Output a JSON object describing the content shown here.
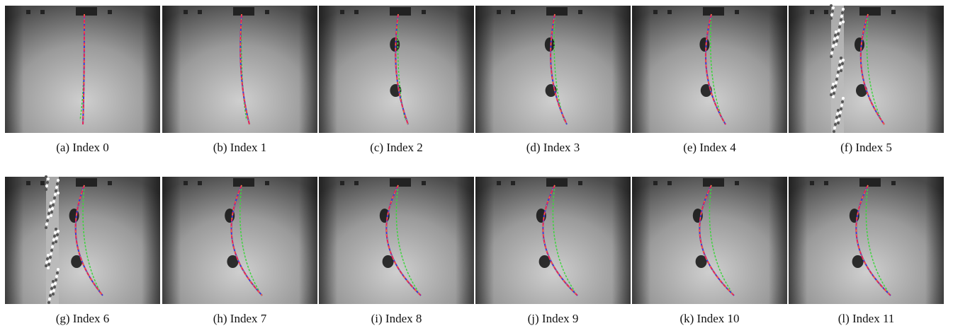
{
  "figure": {
    "panels": [
      {
        "caption": "(a) Index 0"
      },
      {
        "caption": "(b) Index 1"
      },
      {
        "caption": "(c) Index 2"
      },
      {
        "caption": "(d) Index 3"
      },
      {
        "caption": "(e) Index 4"
      },
      {
        "caption": "(f) Index 5"
      },
      {
        "caption": "(g) Index 6"
      },
      {
        "caption": "(h) Index 7"
      },
      {
        "caption": "(i) Index 8"
      },
      {
        "caption": "(j) Index 9"
      },
      {
        "caption": "(k) Index 10"
      },
      {
        "caption": "(l) Index 11"
      }
    ]
  }
}
